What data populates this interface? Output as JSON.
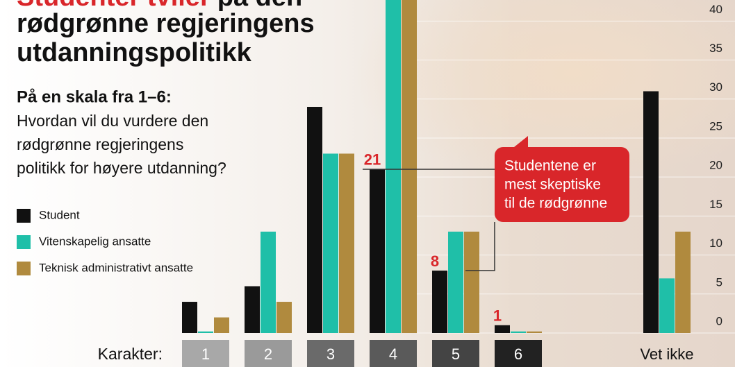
{
  "chart_data": {
    "type": "bar",
    "title_lines": [
      "Studenter tviler",
      "på den",
      "rødgrønne regjeringens",
      "utdanningspolitikk"
    ],
    "subtitle": "På en skala fra 1–6:",
    "question_lines": [
      "Hvordan vil du vurdere den",
      "rødgrønne regjeringens",
      "politikk for høyere utdanning?"
    ],
    "annotation_lines": [
      "Studentene er",
      "mest skeptiske",
      "til de rødgrønne"
    ],
    "x_label": "Karakter:",
    "categories": [
      "1",
      "2",
      "3",
      "4",
      "5",
      "6",
      "Vet ikke"
    ],
    "series": [
      {
        "name": "Student",
        "color": "#111111",
        "values": [
          4,
          6,
          29,
          21,
          8,
          1,
          31
        ]
      },
      {
        "name": "Vitenskapelig ansatte",
        "color": "#1fbfa8",
        "values": [
          0.2,
          13,
          23,
          43,
          13,
          0.2,
          7
        ]
      },
      {
        "name": "Teknisk administrativt ansatte",
        "color": "#b08a3e",
        "values": [
          2,
          4,
          23,
          43,
          13,
          0.2,
          13
        ]
      }
    ],
    "ylim": [
      0,
      42.7
    ],
    "yticks": [
      0,
      5,
      10,
      15,
      20,
      25,
      30,
      35,
      40
    ],
    "grid": true
  }
}
